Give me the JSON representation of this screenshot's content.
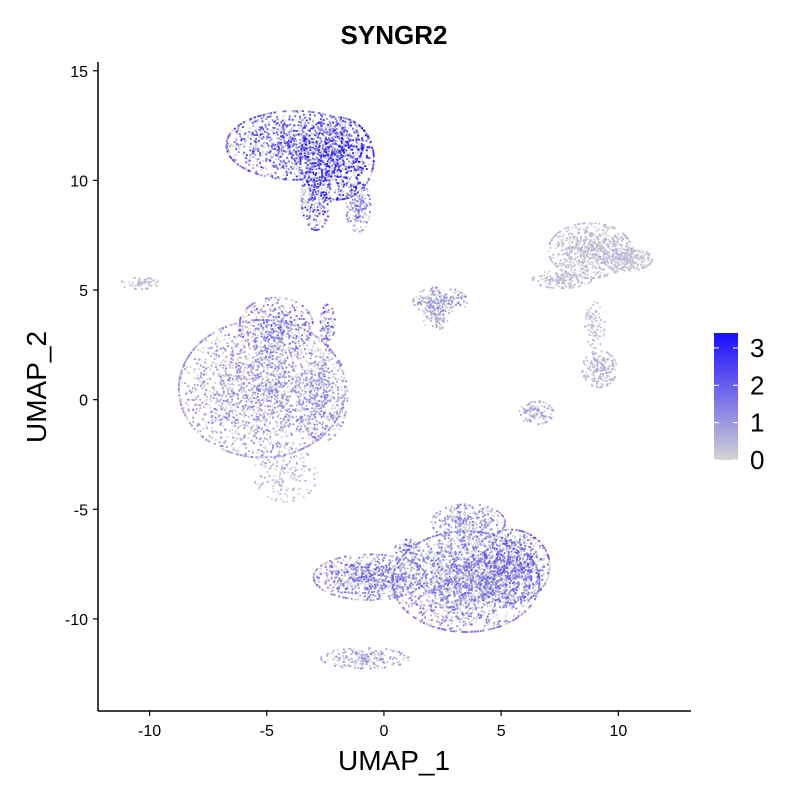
{
  "chart_data": {
    "type": "scatter",
    "title": "SYNGR2",
    "xlabel": "UMAP_1",
    "ylabel": "UMAP_2",
    "xlim": [
      -12.2,
      13.1
    ],
    "ylim": [
      -14.2,
      15.4
    ],
    "xticks": [
      -10,
      -5,
      0,
      5,
      10
    ],
    "yticks": [
      -10,
      -5,
      0,
      5,
      10,
      15
    ],
    "grid": false,
    "point_color_low": "#d3d3d3",
    "point_color_high": "#1a0dff",
    "colorbar": {
      "min": 0,
      "max": 3.4,
      "ticks": [
        0,
        1,
        2,
        3
      ],
      "position": "right"
    },
    "clusters": [
      {
        "cx": -3.8,
        "cy": 11.6,
        "rx": 2.8,
        "ry": 1.5,
        "n": 1300,
        "expr": 1.3
      },
      {
        "cx": -2.0,
        "cy": 11.0,
        "rx": 1.5,
        "ry": 1.8,
        "n": 900,
        "expr": 1.7
      },
      {
        "cx": -2.9,
        "cy": 9.2,
        "rx": 0.6,
        "ry": 1.4,
        "n": 250,
        "expr": 1.4
      },
      {
        "cx": -1.1,
        "cy": 8.8,
        "rx": 0.5,
        "ry": 1.1,
        "n": 180,
        "expr": 0.9
      },
      {
        "cx": -5.2,
        "cy": 0.5,
        "rx": 3.4,
        "ry": 3.0,
        "n": 2100,
        "expr": 0.7
      },
      {
        "cx": -4.6,
        "cy": 3.4,
        "rx": 1.5,
        "ry": 1.2,
        "n": 400,
        "expr": 1.0
      },
      {
        "cx": -2.6,
        "cy": 0.2,
        "rx": 1.0,
        "ry": 2.0,
        "n": 350,
        "expr": 0.7
      },
      {
        "cx": -4.2,
        "cy": -3.4,
        "rx": 1.3,
        "ry": 1.2,
        "n": 180,
        "expr": 0.4
      },
      {
        "cx": -2.4,
        "cy": 3.4,
        "rx": 0.3,
        "ry": 0.9,
        "n": 90,
        "expr": 1.2
      },
      {
        "cx": -10.4,
        "cy": 5.3,
        "rx": 0.8,
        "ry": 0.25,
        "n": 60,
        "expr": 0.3
      },
      {
        "cx": 2.4,
        "cy": 4.5,
        "rx": 1.1,
        "ry": 0.6,
        "n": 220,
        "expr": 0.7
      },
      {
        "cx": 2.2,
        "cy": 3.7,
        "rx": 0.5,
        "ry": 0.5,
        "n": 70,
        "expr": 0.4
      },
      {
        "cx": 8.8,
        "cy": 6.8,
        "rx": 1.7,
        "ry": 1.2,
        "n": 700,
        "expr": 0.3
      },
      {
        "cx": 10.4,
        "cy": 6.4,
        "rx": 1.0,
        "ry": 0.5,
        "n": 250,
        "expr": 0.2
      },
      {
        "cx": 7.6,
        "cy": 5.5,
        "rx": 1.2,
        "ry": 0.4,
        "n": 160,
        "expr": 0.3
      },
      {
        "cx": 9.2,
        "cy": 1.4,
        "rx": 0.7,
        "ry": 0.8,
        "n": 190,
        "expr": 0.4
      },
      {
        "cx": 9.0,
        "cy": 3.4,
        "rx": 0.4,
        "ry": 1.0,
        "n": 90,
        "expr": 0.3
      },
      {
        "cx": 6.5,
        "cy": -0.6,
        "rx": 0.7,
        "ry": 0.5,
        "n": 120,
        "expr": 0.5
      },
      {
        "cx": 3.5,
        "cy": -8.3,
        "rx": 3.0,
        "ry": 2.2,
        "n": 2300,
        "expr": 0.9
      },
      {
        "cx": 5.4,
        "cy": -7.6,
        "rx": 1.6,
        "ry": 1.6,
        "n": 900,
        "expr": 1.1
      },
      {
        "cx": -0.6,
        "cy": -8.1,
        "rx": 2.3,
        "ry": 1.0,
        "n": 850,
        "expr": 0.9
      },
      {
        "cx": 3.6,
        "cy": -5.6,
        "rx": 1.5,
        "ry": 0.8,
        "n": 350,
        "expr": 0.8
      },
      {
        "cx": -0.8,
        "cy": -11.8,
        "rx": 1.8,
        "ry": 0.45,
        "n": 220,
        "expr": 0.6
      },
      {
        "cx": 1.0,
        "cy": -6.8,
        "rx": 0.5,
        "ry": 0.4,
        "n": 60,
        "expr": 1.0
      }
    ]
  }
}
